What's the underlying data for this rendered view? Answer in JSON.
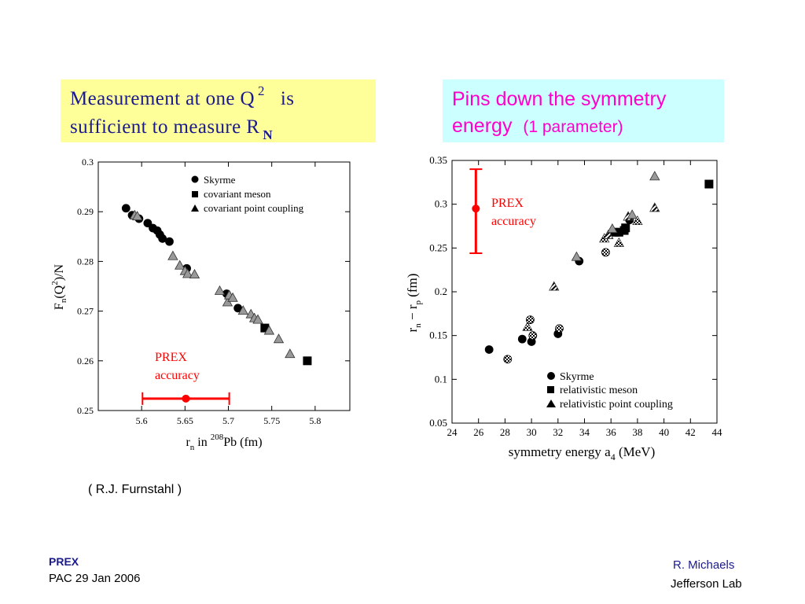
{
  "left_box": {
    "line1_prefix": "Measurement  at  one  Q",
    "line1_sup": "2",
    "line1_suffix": "is",
    "line2_prefix": "sufficient  to  measure   R",
    "line2_sub": "N"
  },
  "right_box": {
    "line1": "Pins  down  the  symmetry",
    "line2_a": "energy",
    "line2_b": "(1 parameter)"
  },
  "credit": "( R.J.  Furnstahl )",
  "footer": {
    "title": "PREX",
    "event": "PAC 29   Jan 2006",
    "author": "R.  Michaels",
    "lab": "Jefferson  Lab"
  },
  "colors": {
    "accent_red": "#ff0000",
    "accent_blue": "#1a1a8c",
    "accent_magenta": "#ff00cc"
  },
  "chart_data": [
    {
      "type": "scatter",
      "title": "",
      "xlabel": "r_n in 208Pb (fm)",
      "ylabel": "F_n(Q^2)/N",
      "xlim": [
        5.55,
        5.84
      ],
      "ylim": [
        0.25,
        0.3
      ],
      "xticks": [
        5.6,
        5.65,
        5.7,
        5.75,
        5.8
      ],
      "xtick_labels": [
        "5.6",
        "5.65",
        "5.7",
        "5.75",
        "5.8"
      ],
      "yticks": [
        0.25,
        0.26,
        0.27,
        0.28,
        0.29,
        0.3
      ],
      "ytick_labels": [
        "0.25",
        "0.26",
        "0.27",
        "0.28",
        "0.29",
        "0.3"
      ],
      "legend_position": "top-right",
      "series": [
        {
          "name": "Skyrme",
          "marker": "circle",
          "points": [
            [
              5.582,
              0.2907
            ],
            [
              5.589,
              0.2893
            ],
            [
              5.597,
              0.2886
            ],
            [
              5.607,
              0.2877
            ],
            [
              5.613,
              0.2867
            ],
            [
              5.618,
              0.2862
            ],
            [
              5.621,
              0.2854
            ],
            [
              5.624,
              0.2846
            ],
            [
              5.632,
              0.284
            ],
            [
              5.652,
              0.2786
            ],
            [
              5.698,
              0.2735
            ],
            [
              5.711,
              0.2706
            ]
          ]
        },
        {
          "name": "covariant meson",
          "marker": "square",
          "points": [
            [
              5.742,
              0.2666
            ],
            [
              5.791,
              0.26
            ]
          ]
        },
        {
          "name": "covariant point coupling",
          "marker": "triangle",
          "points": [
            [
              5.592,
              0.2893
            ],
            [
              5.595,
              0.2891
            ],
            [
              5.636,
              0.2811
            ],
            [
              5.644,
              0.2792
            ],
            [
              5.65,
              0.2781
            ],
            [
              5.653,
              0.2775
            ],
            [
              5.661,
              0.2774
            ],
            [
              5.69,
              0.2741
            ],
            [
              5.699,
              0.2718
            ],
            [
              5.701,
              0.2732
            ],
            [
              5.705,
              0.2727
            ],
            [
              5.717,
              0.2701
            ],
            [
              5.726,
              0.2694
            ],
            [
              5.73,
              0.2686
            ],
            [
              5.734,
              0.2683
            ],
            [
              5.747,
              0.2661
            ],
            [
              5.758,
              0.2644
            ],
            [
              5.771,
              0.2614
            ]
          ]
        }
      ],
      "annotation": {
        "text_line1": "PREX",
        "text_line2": "accuracy",
        "center_x": 5.651,
        "center_y": 0.2524,
        "x_err": 0.05
      }
    },
    {
      "type": "scatter",
      "title": "",
      "xlabel": "symmetry energy a_4 (MeV)",
      "ylabel": "r_n - r_p (fm)",
      "xlim": [
        24,
        44
      ],
      "ylim": [
        0.05,
        0.35
      ],
      "xticks": [
        24,
        26,
        28,
        30,
        32,
        34,
        36,
        38,
        40,
        42,
        44
      ],
      "xtick_labels": [
        "24",
        "26",
        "28",
        "30",
        "32",
        "34",
        "36",
        "38",
        "40",
        "42",
        "44"
      ],
      "yticks": [
        0.05,
        0.1,
        0.15,
        0.2,
        0.25,
        0.3,
        0.35
      ],
      "ytick_labels": [
        "0.05",
        "0.1",
        "0.15",
        "0.2",
        "0.25",
        "0.3",
        "0.35"
      ],
      "legend_position": "bottom-right",
      "series": [
        {
          "name": "Skyrme",
          "marker": "circle",
          "points": [
            [
              26.8,
              0.134
            ],
            [
              28.2,
              0.123
            ],
            [
              29.3,
              0.146
            ],
            [
              29.9,
              0.168
            ],
            [
              30.0,
              0.143
            ],
            [
              30.1,
              0.15
            ],
            [
              32.0,
              0.152
            ],
            [
              32.1,
              0.158
            ],
            [
              33.6,
              0.235
            ],
            [
              35.6,
              0.245
            ],
            [
              37.4,
              0.282
            ]
          ]
        },
        {
          "name": "relativistic meson",
          "marker": "square",
          "points": [
            [
              36.3,
              0.268
            ],
            [
              36.6,
              0.268
            ],
            [
              37.0,
              0.27
            ],
            [
              37.1,
              0.273
            ],
            [
              43.4,
              0.323
            ]
          ]
        },
        {
          "name": "relativistic point coupling",
          "marker": "triangle",
          "points": [
            [
              29.7,
              0.16
            ],
            [
              31.7,
              0.206
            ],
            [
              33.4,
              0.24
            ],
            [
              35.5,
              0.261
            ],
            [
              35.8,
              0.265
            ],
            [
              36.1,
              0.272
            ],
            [
              36.6,
              0.256
            ],
            [
              37.3,
              0.286
            ],
            [
              37.6,
              0.288
            ],
            [
              38.0,
              0.281
            ],
            [
              39.3,
              0.296
            ],
            [
              39.3,
              0.332
            ]
          ]
        }
      ],
      "annotation": {
        "text_line1": "PREX",
        "text_line2": "accuracy",
        "center_x": 25.8,
        "center_y": 0.295,
        "y_low": 0.244,
        "y_high": 0.34
      }
    }
  ]
}
